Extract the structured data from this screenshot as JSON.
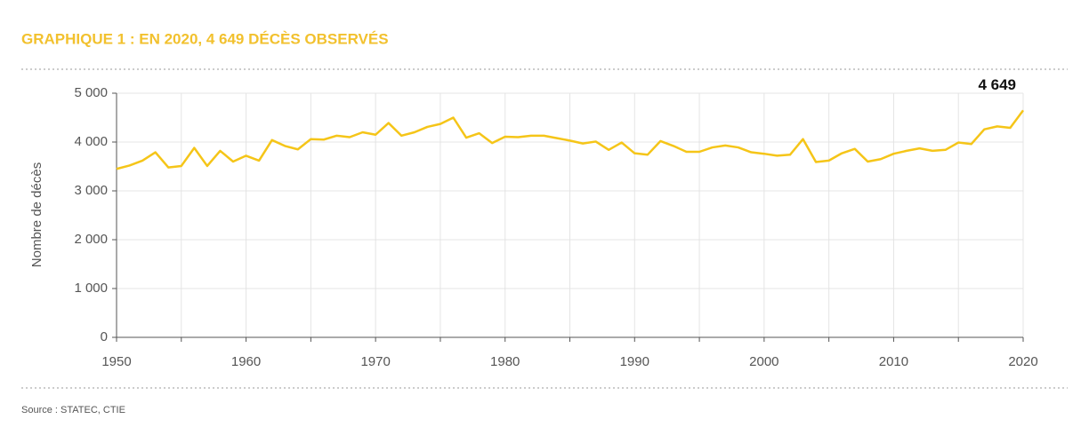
{
  "chart_data": {
    "type": "line",
    "title": "GRAPHIQUE 1 : EN 2020, 4 649 DÉCÈS OBSERVÉS",
    "y_label": "Nombre de décès",
    "source": "Source : STATEC, CTIE",
    "color": "#f5c518",
    "x": [
      1950,
      1951,
      1952,
      1953,
      1954,
      1955,
      1956,
      1957,
      1958,
      1959,
      1960,
      1961,
      1962,
      1963,
      1964,
      1965,
      1966,
      1967,
      1968,
      1969,
      1970,
      1971,
      1972,
      1973,
      1974,
      1975,
      1976,
      1977,
      1978,
      1979,
      1980,
      1981,
      1982,
      1983,
      1984,
      1985,
      1986,
      1987,
      1988,
      1989,
      1990,
      1991,
      1992,
      1993,
      1994,
      1995,
      1996,
      1997,
      1998,
      1999,
      2000,
      2001,
      2002,
      2003,
      2004,
      2005,
      2006,
      2007,
      2008,
      2009,
      2010,
      2011,
      2012,
      2013,
      2014,
      2015,
      2016,
      2017,
      2018,
      2019,
      2020
    ],
    "values": [
      3450,
      3520,
      3620,
      3790,
      3480,
      3510,
      3880,
      3510,
      3820,
      3600,
      3720,
      3620,
      4040,
      3920,
      3850,
      4060,
      4050,
      4130,
      4100,
      4200,
      4150,
      4390,
      4130,
      4200,
      4310,
      4370,
      4500,
      4090,
      4180,
      3980,
      4110,
      4100,
      4130,
      4130,
      4080,
      4030,
      3970,
      4010,
      3840,
      3990,
      3770,
      3740,
      4020,
      3920,
      3800,
      3800,
      3890,
      3930,
      3890,
      3790,
      3760,
      3720,
      3740,
      4060,
      3590,
      3620,
      3770,
      3860,
      3600,
      3650,
      3760,
      3820,
      3870,
      3820,
      3840,
      3990,
      3960,
      4260,
      4320,
      4290,
      4649
    ],
    "annotations": [
      {
        "label": "4 649",
        "x": 2020,
        "y": 4649
      }
    ],
    "xlim": [
      1950,
      2020
    ],
    "xticks": [
      1950,
      1960,
      1970,
      1980,
      1990,
      2000,
      2010,
      2020
    ],
    "xgrid": [
      1950,
      1955,
      1960,
      1965,
      1970,
      1975,
      1980,
      1985,
      1990,
      1995,
      2000,
      2005,
      2010,
      2015,
      2020
    ],
    "ylim": [
      0,
      5000
    ],
    "yticks": [
      0,
      {
        "value": 1000,
        "label": "1 000"
      },
      {
        "value": 2000,
        "label": "2 000"
      },
      {
        "value": 3000,
        "label": "3 000"
      },
      {
        "value": 4000,
        "label": "4 000"
      },
      {
        "value": 5000,
        "label": "5 000"
      }
    ],
    "grid": true
  }
}
